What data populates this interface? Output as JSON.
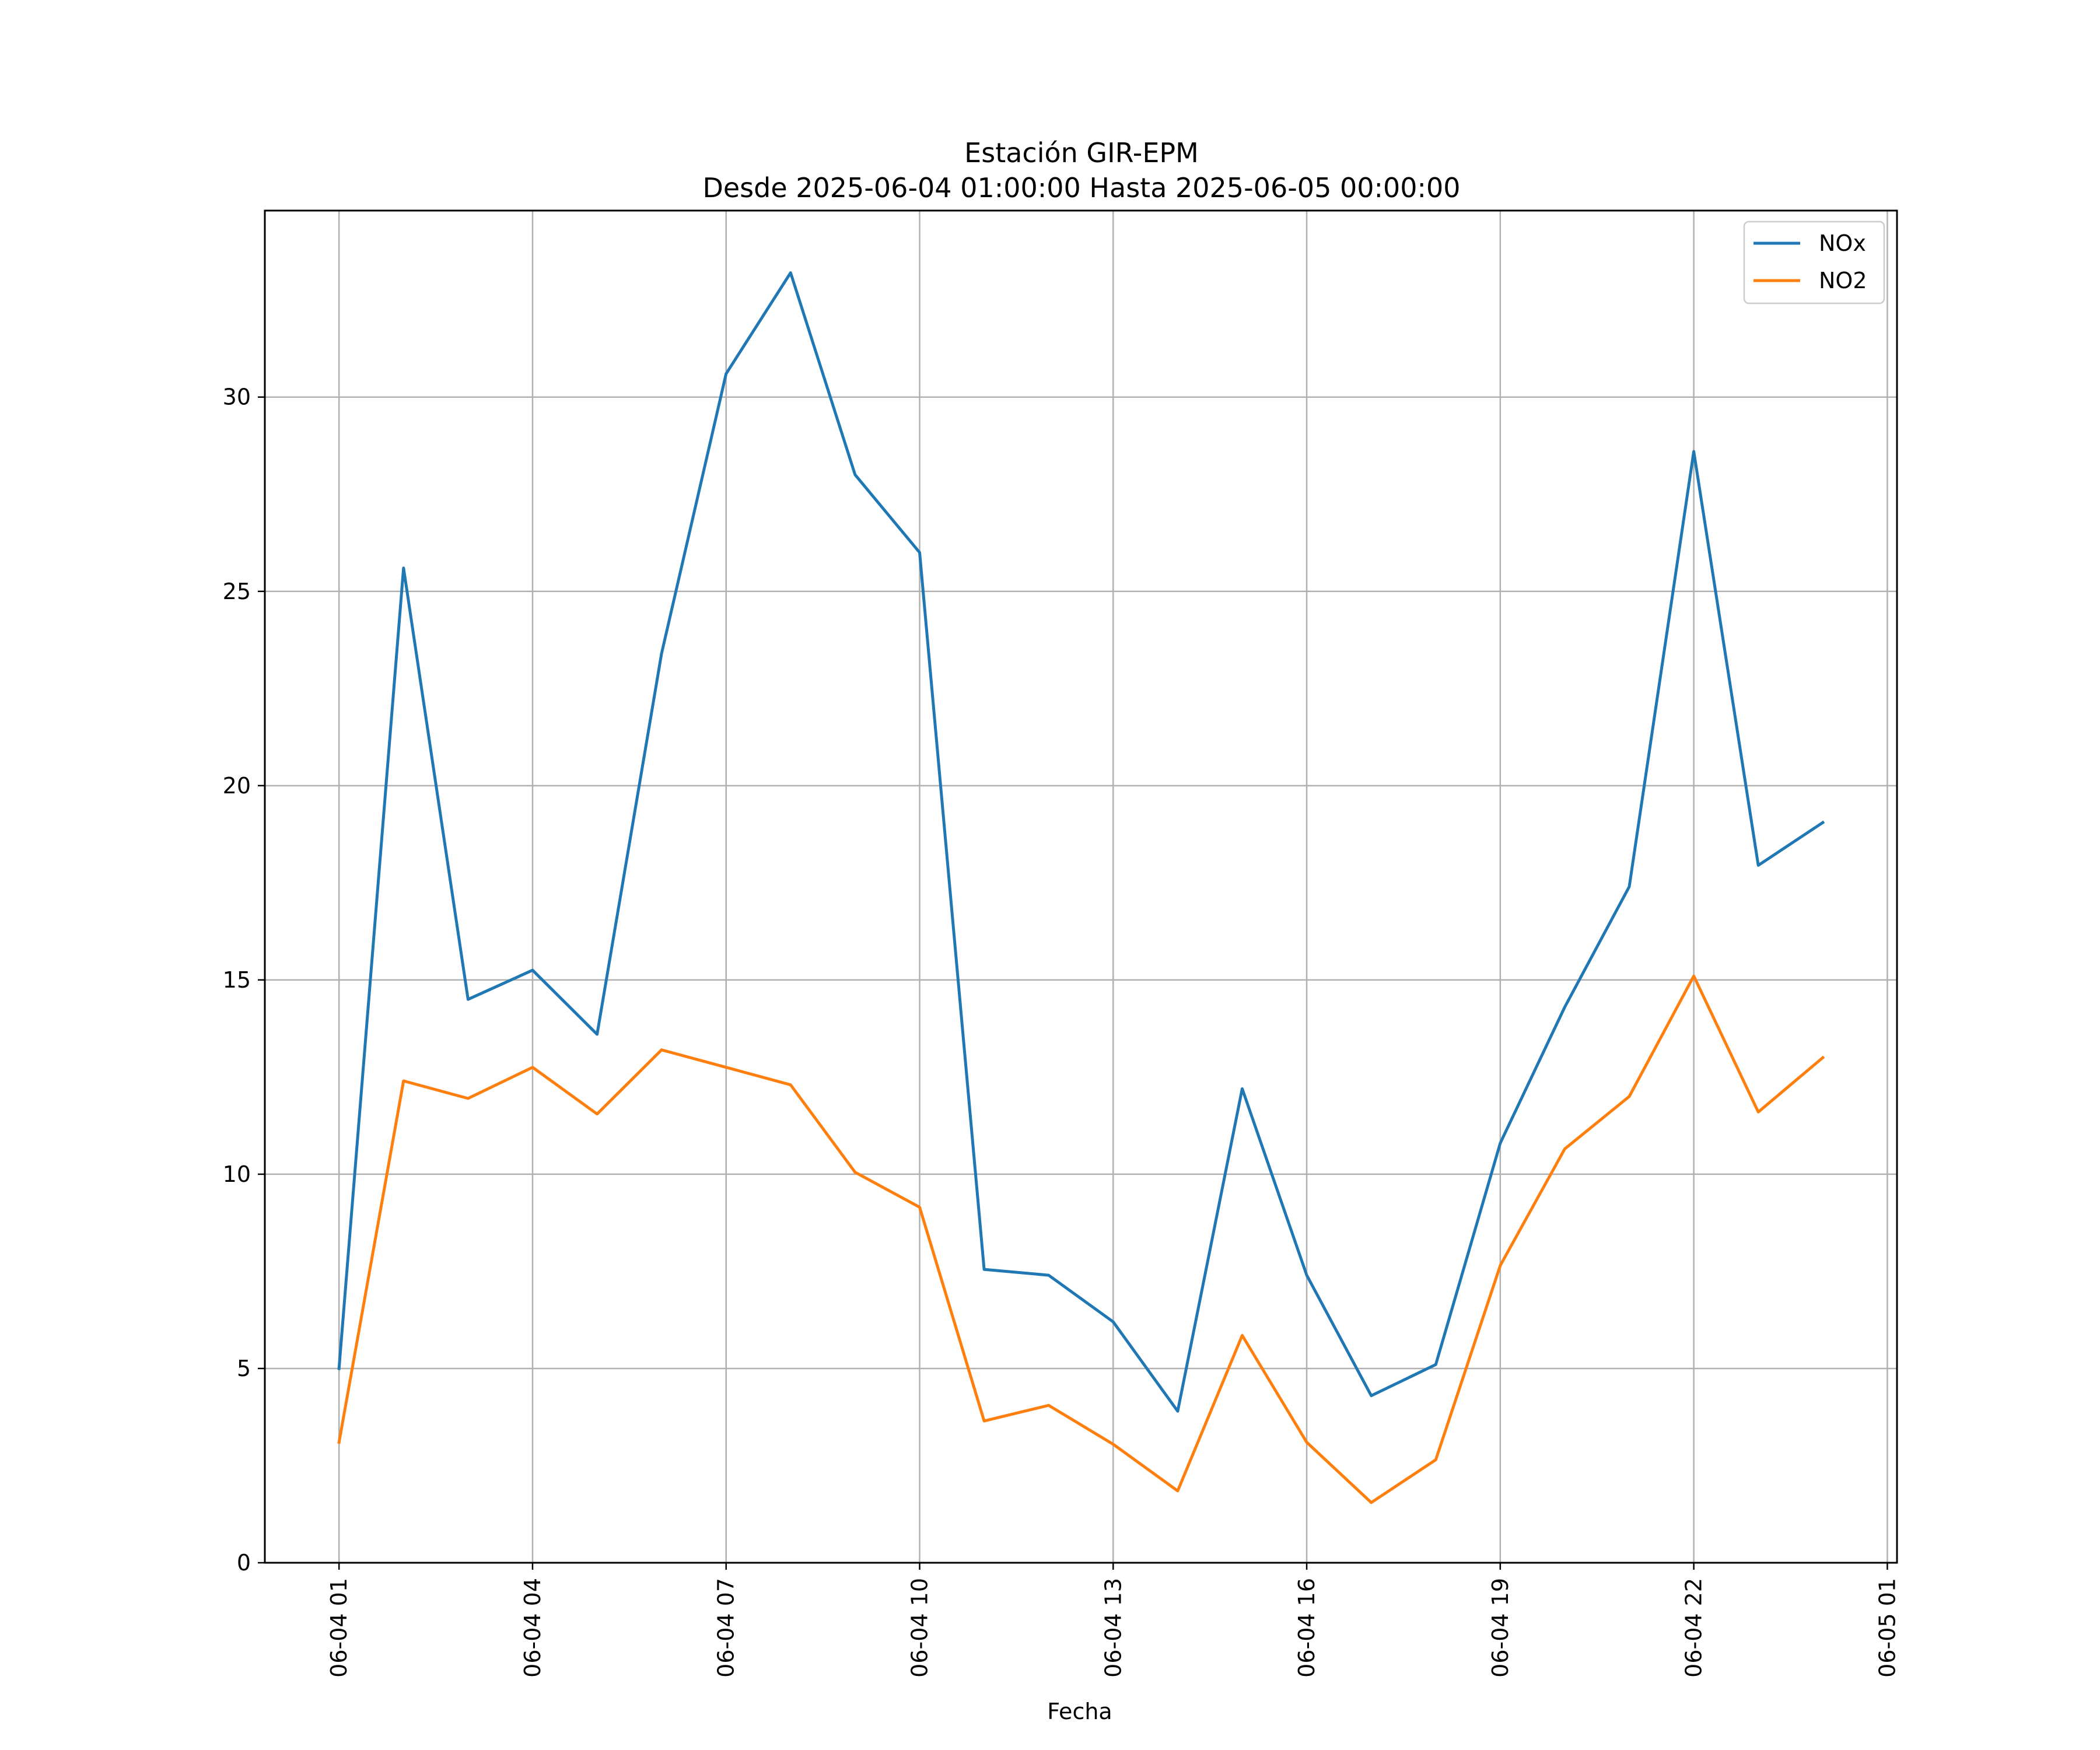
{
  "chart_data": {
    "type": "line",
    "title": "Estación GIR-EPM",
    "subtitle": "Desde 2025-06-04 01:00:00 Hasta 2025-06-05 00:00:00",
    "xlabel": "Fecha",
    "ylabel": "",
    "x": [
      "2025-06-04 01:00",
      "2025-06-04 02:00",
      "2025-06-04 03:00",
      "2025-06-04 04:00",
      "2025-06-04 05:00",
      "2025-06-04 06:00",
      "2025-06-04 07:00",
      "2025-06-04 08:00",
      "2025-06-04 09:00",
      "2025-06-04 10:00",
      "2025-06-04 11:00",
      "2025-06-04 12:00",
      "2025-06-04 13:00",
      "2025-06-04 14:00",
      "2025-06-04 15:00",
      "2025-06-04 16:00",
      "2025-06-04 17:00",
      "2025-06-04 18:00",
      "2025-06-04 19:00",
      "2025-06-04 20:00",
      "2025-06-04 21:00",
      "2025-06-04 22:00",
      "2025-06-04 23:00",
      "2025-06-05 00:00"
    ],
    "series": [
      {
        "name": "NOx",
        "color": "#1f77b4",
        "values": [
          5.0,
          25.6,
          14.5,
          15.25,
          13.6,
          23.4,
          30.6,
          33.2,
          28.0,
          26.0,
          7.55,
          7.4,
          6.2,
          3.9,
          12.2,
          7.4,
          4.3,
          5.1,
          10.8,
          14.3,
          17.4,
          28.6,
          17.95,
          19.05
        ]
      },
      {
        "name": "NO2",
        "color": "#ff7f0e",
        "values": [
          3.1,
          12.4,
          11.95,
          12.75,
          11.55,
          13.2,
          12.75,
          12.3,
          10.05,
          9.15,
          3.65,
          4.05,
          3.05,
          1.85,
          5.85,
          3.1,
          1.55,
          2.65,
          7.65,
          10.65,
          12.0,
          15.1,
          11.6,
          13.0
        ]
      }
    ],
    "xticks": [
      "06-04 01",
      "06-04 04",
      "06-04 07",
      "06-04 10",
      "06-04 13",
      "06-04 16",
      "06-04 19",
      "06-04 22",
      "06-05 01"
    ],
    "xtick_values": [
      "2025-06-04 01:00",
      "2025-06-04 04:00",
      "2025-06-04 07:00",
      "2025-06-04 10:00",
      "2025-06-04 13:00",
      "2025-06-04 16:00",
      "2025-06-04 19:00",
      "2025-06-04 22:00",
      "2025-06-05 01:00"
    ],
    "xlim": [
      "2025-06-03 23:51",
      "2025-06-05 01:09"
    ],
    "yticks": [
      0,
      5,
      10,
      15,
      20,
      25,
      30
    ],
    "ylim": [
      0,
      34.8
    ],
    "grid": true,
    "legend": "top-right"
  }
}
